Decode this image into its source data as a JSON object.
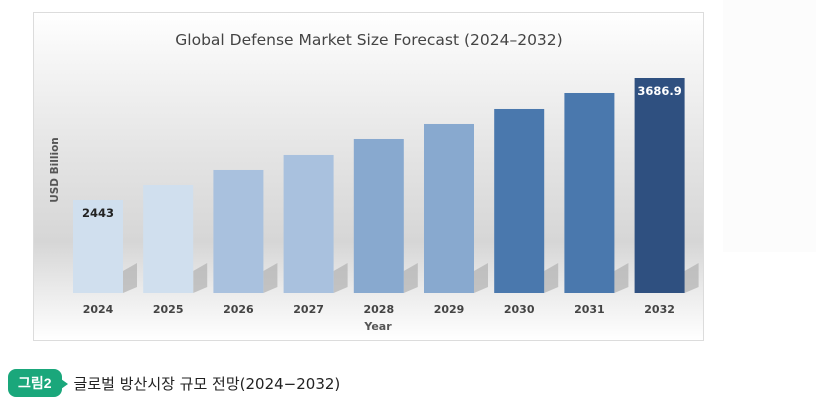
{
  "chart_data": {
    "type": "bar",
    "title": "Global Defense Market Size Forecast (2024–2032)",
    "xlabel": "Year",
    "ylabel": "USD Billion",
    "categories": [
      "2024",
      "2025",
      "2026",
      "2027",
      "2028",
      "2029",
      "2030",
      "2031",
      "2032"
    ],
    "values": [
      2443,
      2596,
      2749,
      2902,
      3065,
      3218,
      3371,
      3534,
      3686.9
    ],
    "data_labels": [
      {
        "index": 0,
        "text": "2443"
      },
      {
        "index": 8,
        "text": "3686.9"
      }
    ],
    "bar_colors": [
      "#d0dfee",
      "#d0dfee",
      "#a9c1de",
      "#a9c1de",
      "#88a9cf",
      "#88a9cf",
      "#4a78ad",
      "#4a78ad",
      "#2f5080"
    ],
    "grid": false,
    "legend": "none"
  },
  "caption": {
    "badge": "그림2",
    "text": "글로벌 방산시장 규모 전망(2024−2032)",
    "badge_color": "#1aa77b"
  }
}
